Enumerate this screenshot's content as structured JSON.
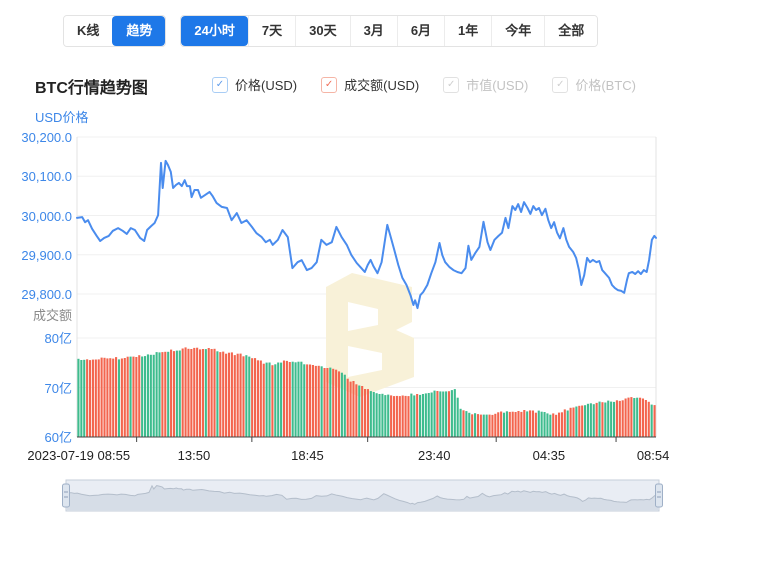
{
  "toolbar": {
    "chart_type_tabs": [
      {
        "key": "kline",
        "label": "K线",
        "active": false
      },
      {
        "key": "trend",
        "label": "趋势",
        "active": true
      }
    ],
    "range_tabs": [
      {
        "key": "24h",
        "label": "24小时",
        "active": true
      },
      {
        "key": "7d",
        "label": "7天",
        "active": false
      },
      {
        "key": "30d",
        "label": "30天",
        "active": false
      },
      {
        "key": "3m",
        "label": "3月",
        "active": false
      },
      {
        "key": "6m",
        "label": "6月",
        "active": false
      },
      {
        "key": "1y",
        "label": "1年",
        "active": false
      },
      {
        "key": "ytd",
        "label": "今年",
        "active": false
      },
      {
        "key": "all",
        "label": "全部",
        "active": false
      }
    ]
  },
  "header": {
    "title": "BTC行情趋势图",
    "legend": [
      {
        "key": "price-usd",
        "label": "价格(USD)",
        "checked": true,
        "enabled": true,
        "border_color": "#A9CDF5",
        "check_color": "#5F9BEA",
        "label_color": "#333333"
      },
      {
        "key": "volume-usd",
        "label": "成交额(USD)",
        "checked": true,
        "enabled": true,
        "border_color": "#F5B5A6",
        "check_color": "#F0705A",
        "label_color": "#333333"
      },
      {
        "key": "marketcap-usd",
        "label": "市值(USD)",
        "checked": true,
        "enabled": false,
        "border_color": "#E1E1E1",
        "check_color": "#CFCFCF",
        "label_color": "#C3C3C3"
      },
      {
        "key": "price-btc",
        "label": "价格(BTC)",
        "checked": true,
        "enabled": false,
        "border_color": "#E1E1E1",
        "check_color": "#CFCFCF",
        "label_color": "#C3C3C3"
      }
    ]
  },
  "colors": {
    "accent_blue": "#1E78E8",
    "axis_blue": "#3D87E8",
    "line_blue": "#4A8CEE",
    "bar_red": "#F3654E",
    "bar_green": "#3EBC8E",
    "grid": "#F0F0F0",
    "plot_border": "#E3E3E3",
    "x_axis_line": "#444444",
    "watermark": "#F8F1D8",
    "nav_bg": "#E9EDF4",
    "nav_fill": "#D6DDE7",
    "nav_line": "#B4BECB",
    "nav_border": "#C5CEDA",
    "nav_handle_fill": "#DDE5EF",
    "nav_handle_border": "#9FB0C7"
  },
  "chart_data": {
    "type": "line+bar",
    "title": "BTC行情趋势图",
    "price_axis": {
      "label": "USD价格",
      "tick_labels": [
        "30,200.0",
        "30,100.0",
        "30,000.0",
        "29,900.0",
        "29,800.0"
      ],
      "tick_values": [
        30200,
        30100,
        30000,
        29900,
        29800
      ],
      "max": 30200,
      "min_visible": 29760
    },
    "volume_axis": {
      "label": "成交额",
      "tick_labels": [
        "80亿",
        "70亿",
        "60亿"
      ],
      "tick_values": [
        80,
        70,
        60
      ],
      "unit": "亿"
    },
    "x_axis": {
      "labels": [
        "2023-07-19 08:55",
        "13:50",
        "18:45",
        "23:40",
        "04:35",
        "08:54"
      ],
      "label_t": [
        0.003,
        0.202,
        0.398,
        0.617,
        0.815,
        0.995
      ],
      "boundary_tick_t": [
        0.103,
        0.302,
        0.502,
        0.724,
        0.931
      ]
    },
    "price_series": {
      "name": "价格(USD)",
      "points": [
        [
          0.0,
          29994
        ],
        [
          0.009,
          29996
        ],
        [
          0.014,
          29983
        ],
        [
          0.019,
          29988
        ],
        [
          0.026,
          29966
        ],
        [
          0.034,
          29948
        ],
        [
          0.04,
          29935
        ],
        [
          0.047,
          29943
        ],
        [
          0.055,
          29948
        ],
        [
          0.062,
          29961
        ],
        [
          0.071,
          29968
        ],
        [
          0.079,
          29961
        ],
        [
          0.086,
          29953
        ],
        [
          0.093,
          29968
        ],
        [
          0.1,
          29963
        ],
        [
          0.109,
          29943
        ],
        [
          0.116,
          29935
        ],
        [
          0.121,
          29963
        ],
        [
          0.128,
          29973
        ],
        [
          0.134,
          29981
        ],
        [
          0.14,
          30001
        ],
        [
          0.145,
          30134
        ],
        [
          0.148,
          30070
        ],
        [
          0.153,
          30139
        ],
        [
          0.157,
          30129
        ],
        [
          0.162,
          30111
        ],
        [
          0.166,
          30070
        ],
        [
          0.171,
          30078
        ],
        [
          0.176,
          30083
        ],
        [
          0.181,
          30075
        ],
        [
          0.186,
          30090
        ],
        [
          0.19,
          30075
        ],
        [
          0.195,
          30075
        ],
        [
          0.198,
          30047
        ],
        [
          0.203,
          30065
        ],
        [
          0.209,
          30065
        ],
        [
          0.214,
          30045
        ],
        [
          0.221,
          30052
        ],
        [
          0.229,
          30060
        ],
        [
          0.234,
          30050
        ],
        [
          0.241,
          30032
        ],
        [
          0.25,
          30022
        ],
        [
          0.259,
          30019
        ],
        [
          0.267,
          29988
        ],
        [
          0.276,
          30006
        ],
        [
          0.284,
          29981
        ],
        [
          0.293,
          29988
        ],
        [
          0.302,
          29971
        ],
        [
          0.31,
          29955
        ],
        [
          0.319,
          29945
        ],
        [
          0.326,
          29932
        ],
        [
          0.333,
          29938
        ],
        [
          0.338,
          29925
        ],
        [
          0.347,
          29938
        ],
        [
          0.355,
          29963
        ],
        [
          0.364,
          29945
        ],
        [
          0.372,
          29866
        ],
        [
          0.381,
          29881
        ],
        [
          0.388,
          29886
        ],
        [
          0.397,
          29861
        ],
        [
          0.405,
          29866
        ],
        [
          0.414,
          29881
        ],
        [
          0.422,
          29938
        ],
        [
          0.431,
          29925
        ],
        [
          0.44,
          29932
        ],
        [
          0.448,
          29971
        ],
        [
          0.457,
          29945
        ],
        [
          0.466,
          29925
        ],
        [
          0.474,
          29899
        ],
        [
          0.483,
          29879
        ],
        [
          0.491,
          29866
        ],
        [
          0.497,
          29856
        ],
        [
          0.502,
          29874
        ],
        [
          0.507,
          29887
        ],
        [
          0.512,
          29871
        ],
        [
          0.519,
          29853
        ],
        [
          0.526,
          29881
        ],
        [
          0.536,
          29976
        ],
        [
          0.541,
          29950
        ],
        [
          0.548,
          29912
        ],
        [
          0.555,
          29874
        ],
        [
          0.562,
          29841
        ],
        [
          0.569,
          29823
        ],
        [
          0.576,
          29797
        ],
        [
          0.581,
          29772
        ],
        [
          0.584,
          29784
        ],
        [
          0.588,
          29764
        ],
        [
          0.593,
          29797
        ],
        [
          0.598,
          29805
        ],
        [
          0.605,
          29823
        ],
        [
          0.612,
          29853
        ],
        [
          0.619,
          29881
        ],
        [
          0.626,
          29930
        ],
        [
          0.631,
          29899
        ],
        [
          0.636,
          29881
        ],
        [
          0.643,
          29869
        ],
        [
          0.65,
          29861
        ],
        [
          0.657,
          29856
        ],
        [
          0.664,
          29853
        ],
        [
          0.671,
          29866
        ],
        [
          0.676,
          29923
        ],
        [
          0.681,
          29887
        ],
        [
          0.688,
          29905
        ],
        [
          0.695,
          29920
        ],
        [
          0.702,
          29984
        ],
        [
          0.709,
          29932
        ],
        [
          0.714,
          29912
        ],
        [
          0.721,
          29938
        ],
        [
          0.728,
          29948
        ],
        [
          0.734,
          29956
        ],
        [
          0.74,
          29994
        ],
        [
          0.745,
          29968
        ],
        [
          0.752,
          30024
        ],
        [
          0.757,
          30014
        ],
        [
          0.762,
          30029
        ],
        [
          0.767,
          30009
        ],
        [
          0.772,
          30034
        ],
        [
          0.778,
          30019
        ],
        [
          0.783,
          30004
        ],
        [
          0.788,
          30024
        ],
        [
          0.793,
          30014
        ],
        [
          0.798,
          30019
        ],
        [
          0.803,
          30001
        ],
        [
          0.809,
          30017
        ],
        [
          0.814,
          29988
        ],
        [
          0.819,
          29968
        ],
        [
          0.824,
          29983
        ],
        [
          0.829,
          29957
        ],
        [
          0.834,
          29942
        ],
        [
          0.84,
          29968
        ],
        [
          0.845,
          29938
        ],
        [
          0.85,
          29920
        ],
        [
          0.857,
          29907
        ],
        [
          0.862,
          29892
        ],
        [
          0.867,
          29861
        ],
        [
          0.871,
          29823
        ],
        [
          0.876,
          29848
        ],
        [
          0.881,
          29892
        ],
        [
          0.886,
          29881
        ],
        [
          0.891,
          29887
        ],
        [
          0.897,
          29881
        ],
        [
          0.902,
          29884
        ],
        [
          0.907,
          29861
        ],
        [
          0.912,
          29853
        ],
        [
          0.919,
          29841
        ],
        [
          0.924,
          29823
        ],
        [
          0.929,
          29815
        ],
        [
          0.934,
          29810
        ],
        [
          0.94,
          29808
        ],
        [
          0.945,
          29803
        ],
        [
          0.95,
          29836
        ],
        [
          0.953,
          29853
        ],
        [
          0.959,
          29856
        ],
        [
          0.964,
          29851
        ],
        [
          0.969,
          29858
        ],
        [
          0.974,
          29851
        ],
        [
          0.979,
          29861
        ],
        [
          0.984,
          29856
        ],
        [
          0.988,
          29887
        ],
        [
          0.993,
          29938
        ],
        [
          0.997,
          29948
        ],
        [
          1.0,
          29943
        ]
      ]
    },
    "volume_series": {
      "name": "成交额(USD)",
      "unit": "亿",
      "bar_count": 200,
      "profile": [
        [
          0.0,
          75.6
        ],
        [
          0.04,
          75.8
        ],
        [
          0.09,
          76.0
        ],
        [
          0.125,
          76.6
        ],
        [
          0.15,
          77.2
        ],
        [
          0.17,
          77.6
        ],
        [
          0.195,
          78.0
        ],
        [
          0.23,
          77.8
        ],
        [
          0.26,
          77.0
        ],
        [
          0.3,
          76.3
        ],
        [
          0.32,
          75.1
        ],
        [
          0.34,
          74.7
        ],
        [
          0.36,
          75.5
        ],
        [
          0.385,
          75.1
        ],
        [
          0.4,
          74.5
        ],
        [
          0.435,
          73.9
        ],
        [
          0.46,
          73.1
        ],
        [
          0.47,
          71.5
        ],
        [
          0.49,
          70.5
        ],
        [
          0.505,
          69.3
        ],
        [
          0.53,
          68.7
        ],
        [
          0.555,
          68.3
        ],
        [
          0.59,
          68.7
        ],
        [
          0.615,
          69.3
        ],
        [
          0.655,
          69.5
        ],
        [
          0.662,
          65.7
        ],
        [
          0.68,
          64.8
        ],
        [
          0.71,
          64.4
        ],
        [
          0.735,
          65.1
        ],
        [
          0.765,
          65.3
        ],
        [
          0.8,
          65.1
        ],
        [
          0.825,
          64.6
        ],
        [
          0.85,
          65.7
        ],
        [
          0.875,
          66.3
        ],
        [
          0.9,
          66.9
        ],
        [
          0.925,
          67.3
        ],
        [
          0.95,
          67.7
        ],
        [
          0.965,
          68.1
        ],
        [
          0.98,
          67.9
        ],
        [
          0.99,
          66.9
        ],
        [
          1.0,
          66.3
        ]
      ]
    }
  }
}
